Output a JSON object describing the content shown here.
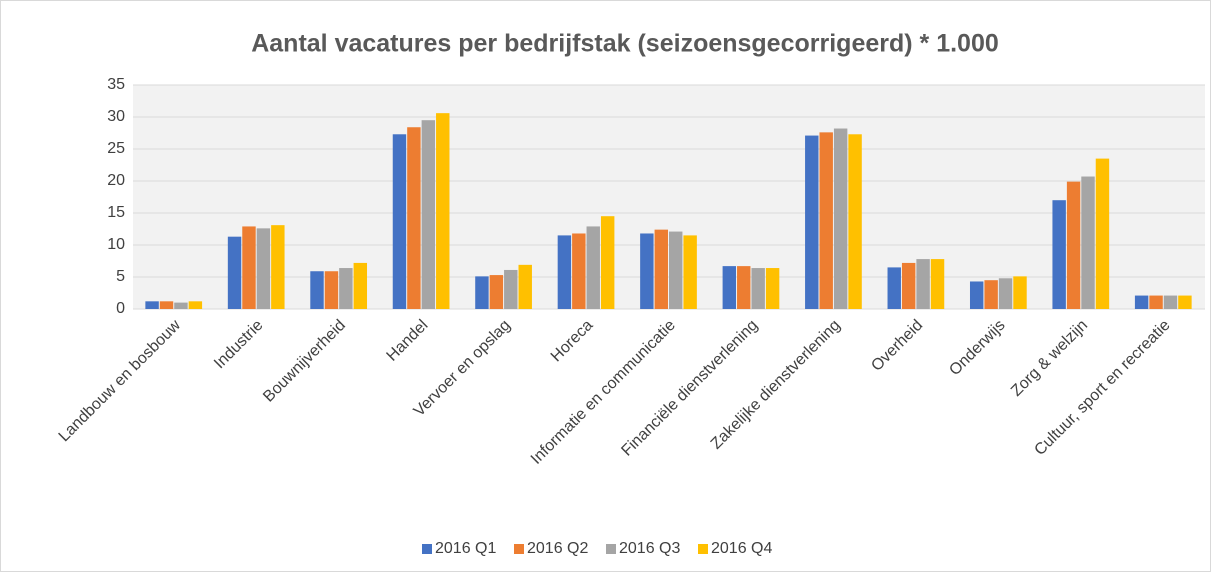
{
  "chart_data": {
    "type": "bar",
    "title": "Aantal vacatures per bedrijfstak (seizoensgecorrigeerd) * 1.000",
    "categories": [
      "Landbouw en bosbouw",
      "Industrie",
      "Bouwnijverheid",
      "Handel",
      "Vervoer en opslag",
      "Horeca",
      "Informatie en communicatie",
      "Financiële dienstverlening",
      "Zakelijke dienstverlening",
      "Overheid",
      "Onderwijs",
      "Zorg & welzijn",
      "Cultuur, sport en recreatie"
    ],
    "series": [
      {
        "name": "2016 Q1",
        "color": "#4472c4",
        "values": [
          1.2,
          11.3,
          5.9,
          27.3,
          5.1,
          11.5,
          11.8,
          6.7,
          27.1,
          6.5,
          4.3,
          17.0,
          2.1
        ]
      },
      {
        "name": "2016 Q2",
        "color": "#ed7d31",
        "values": [
          1.2,
          12.9,
          5.9,
          28.4,
          5.3,
          11.8,
          12.4,
          6.7,
          27.6,
          7.2,
          4.5,
          19.9,
          2.1
        ]
      },
      {
        "name": "2016 Q3",
        "color": "#a5a5a5",
        "values": [
          1.0,
          12.6,
          6.4,
          29.5,
          6.1,
          12.9,
          12.1,
          6.4,
          28.2,
          7.8,
          4.8,
          20.7,
          2.1
        ]
      },
      {
        "name": "2016 Q4",
        "color": "#ffc000",
        "values": [
          1.2,
          13.1,
          7.2,
          30.6,
          6.9,
          14.5,
          11.5,
          6.4,
          27.3,
          7.8,
          5.1,
          23.5,
          2.1
        ]
      }
    ],
    "ylim": [
      0,
      35
    ],
    "yticks": [
      0,
      5,
      10,
      15,
      20,
      25,
      30,
      35
    ],
    "grid": true,
    "legend": "bottom"
  }
}
